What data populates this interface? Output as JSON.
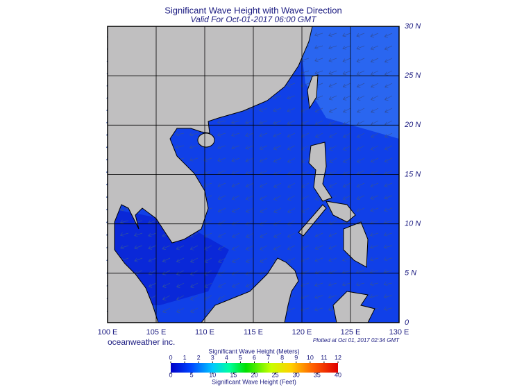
{
  "header": {
    "title": "Significant Wave Height with Wave Direction",
    "subtitle": "Valid For Oct-01-2017 06:00 GMT"
  },
  "map": {
    "xlim": [
      100,
      130
    ],
    "ylim": [
      0,
      30
    ],
    "xticks": [
      {
        "value": 100,
        "label": "100 E"
      },
      {
        "value": 105,
        "label": "105 E"
      },
      {
        "value": 110,
        "label": "110 E"
      },
      {
        "value": 115,
        "label": "115 E"
      },
      {
        "value": 120,
        "label": "120 E"
      },
      {
        "value": 125,
        "label": "125 E"
      },
      {
        "value": 130,
        "label": "130 E"
      }
    ],
    "yticks": [
      0,
      {
        "value": 5,
        "label": "5 N"
      },
      {
        "value": 10,
        "label": "10 N"
      },
      {
        "value": 15,
        "label": "15 N"
      },
      {
        "value": 20,
        "label": "20 N"
      },
      {
        "value": 25,
        "label": "25 N"
      },
      {
        "value": 30,
        "label": "30 N"
      }
    ]
  },
  "credit": "oceanweather inc.",
  "plotted": "Plotted at Oct 01, 2017 02:34 GMT",
  "colorbar": {
    "title_meters": "Significant Wave Height (Meters)",
    "title_feet": "Significant Wave Height (Feet)",
    "meters_lim": [
      0,
      12
    ],
    "meters_ticks": [
      0,
      1,
      2,
      3,
      4,
      5,
      6,
      7,
      8,
      9,
      10,
      11,
      12
    ],
    "feet_lim": [
      0,
      40
    ],
    "feet_ticks": [
      0,
      5,
      10,
      15,
      20,
      25,
      30,
      35,
      40
    ]
  }
}
